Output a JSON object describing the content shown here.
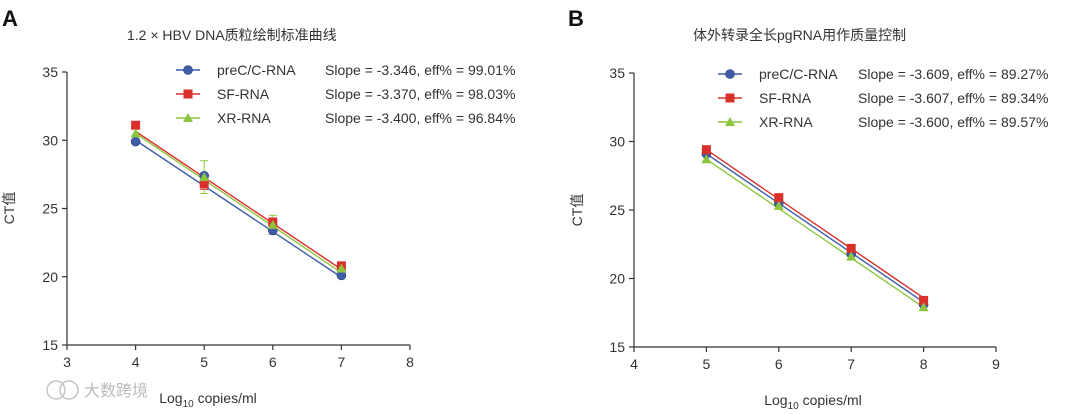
{
  "watermark": "大数跨境",
  "chart_data": [
    {
      "panel": "A",
      "type": "line",
      "title": "1.2 × HBV DNA质粒绘制标准曲线",
      "xlabel": {
        "pre": "Log",
        "sub": "10",
        "post": " copies/ml"
      },
      "ylabel": "CT值",
      "xlim": [
        3,
        8
      ],
      "ylim": [
        15,
        35
      ],
      "xticks": [
        3,
        4,
        5,
        6,
        7,
        8
      ],
      "yticks": [
        15,
        20,
        25,
        30,
        35
      ],
      "series": [
        {
          "name": "preC/C-RNA",
          "stat": "Slope = -3.346, eff% = 99.01%",
          "color": "#3f5ca8",
          "marker": "circle",
          "x": [
            4,
            5,
            6,
            7
          ],
          "y": [
            29.9,
            27.4,
            23.4,
            20.1
          ],
          "fit": {
            "slope": -3.346,
            "x0": 4,
            "y0": 30.0
          },
          "err": [
            0,
            0,
            0.3,
            0
          ]
        },
        {
          "name": "SF-RNA",
          "stat": "Slope = -3.370, eff% = 98.03%",
          "color": "#d9302c",
          "marker": "square",
          "x": [
            4,
            5,
            6,
            7
          ],
          "y": [
            31.1,
            26.8,
            24.0,
            20.8
          ],
          "fit": {
            "slope": -3.37,
            "x0": 4,
            "y0": 30.65
          },
          "err": [
            0,
            0.4,
            0.3,
            0
          ]
        },
        {
          "name": "XR-RNA",
          "stat": "Slope = -3.400, eff% = 96.84%",
          "color": "#8cc63f",
          "marker": "triangle",
          "x": [
            4,
            5,
            6,
            7
          ],
          "y": [
            30.5,
            27.3,
            23.8,
            20.6
          ],
          "fit": {
            "slope": -3.4,
            "x0": 4,
            "y0": 30.5
          },
          "err": [
            0,
            1.2,
            0.7,
            0
          ]
        }
      ]
    },
    {
      "panel": "B",
      "type": "line",
      "title": "体外转录全长pgRNA用作质量控制",
      "xlabel": {
        "pre": "Log",
        "sub": "10",
        "post": " copies/ml"
      },
      "ylabel": "CT值",
      "xlim": [
        4,
        9
      ],
      "ylim": [
        15,
        35
      ],
      "xticks": [
        4,
        5,
        6,
        7,
        8,
        9
      ],
      "yticks": [
        15,
        20,
        25,
        30,
        35
      ],
      "series": [
        {
          "name": "preC/C-RNA",
          "stat": "Slope = -3.609, eff% = 89.27%",
          "color": "#3f5ca8",
          "marker": "circle",
          "x": [
            5,
            6,
            7,
            8
          ],
          "y": [
            29.1,
            25.5,
            21.8,
            18.1
          ],
          "fit": {
            "slope": -3.609,
            "x0": 5,
            "y0": 29.1
          },
          "err": [
            0,
            0,
            0,
            0
          ]
        },
        {
          "name": "SF-RNA",
          "stat": "Slope = -3.607, eff% = 89.34%",
          "color": "#d9302c",
          "marker": "square",
          "x": [
            5,
            6,
            7,
            8
          ],
          "y": [
            29.4,
            25.9,
            22.2,
            18.4
          ],
          "fit": {
            "slope": -3.607,
            "x0": 5,
            "y0": 29.4
          },
          "err": [
            0,
            0,
            0,
            0
          ]
        },
        {
          "name": "XR-RNA",
          "stat": "Slope = -3.600, eff% = 89.57%",
          "color": "#8cc63f",
          "marker": "triangle",
          "x": [
            5,
            6,
            7,
            8
          ],
          "y": [
            28.7,
            25.3,
            21.6,
            17.9
          ],
          "fit": {
            "slope": -3.6,
            "x0": 5,
            "y0": 28.7
          },
          "err": [
            0,
            0,
            0,
            0
          ]
        }
      ]
    }
  ]
}
